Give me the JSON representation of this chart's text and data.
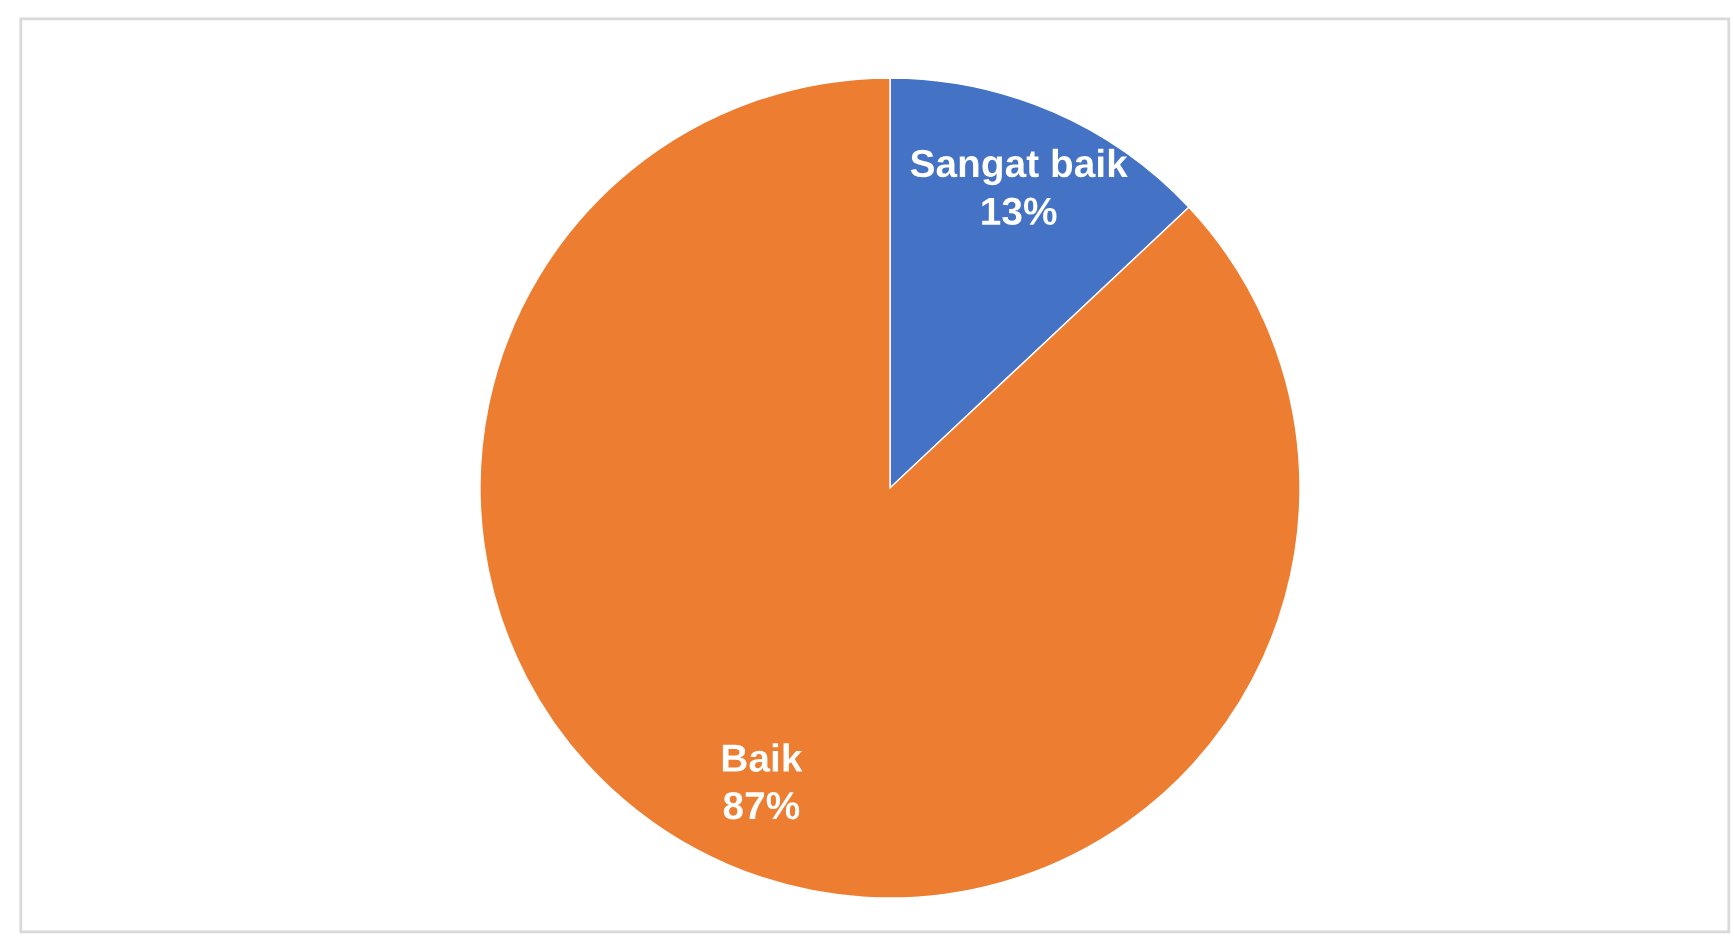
{
  "chart_data": {
    "type": "pie",
    "categories": [
      "Sangat baik",
      "Baik"
    ],
    "values": [
      13,
      87
    ],
    "colors": [
      "#4472c4",
      "#ed7d31"
    ],
    "value_labels": [
      "13%",
      "87%"
    ],
    "legend": false
  }
}
